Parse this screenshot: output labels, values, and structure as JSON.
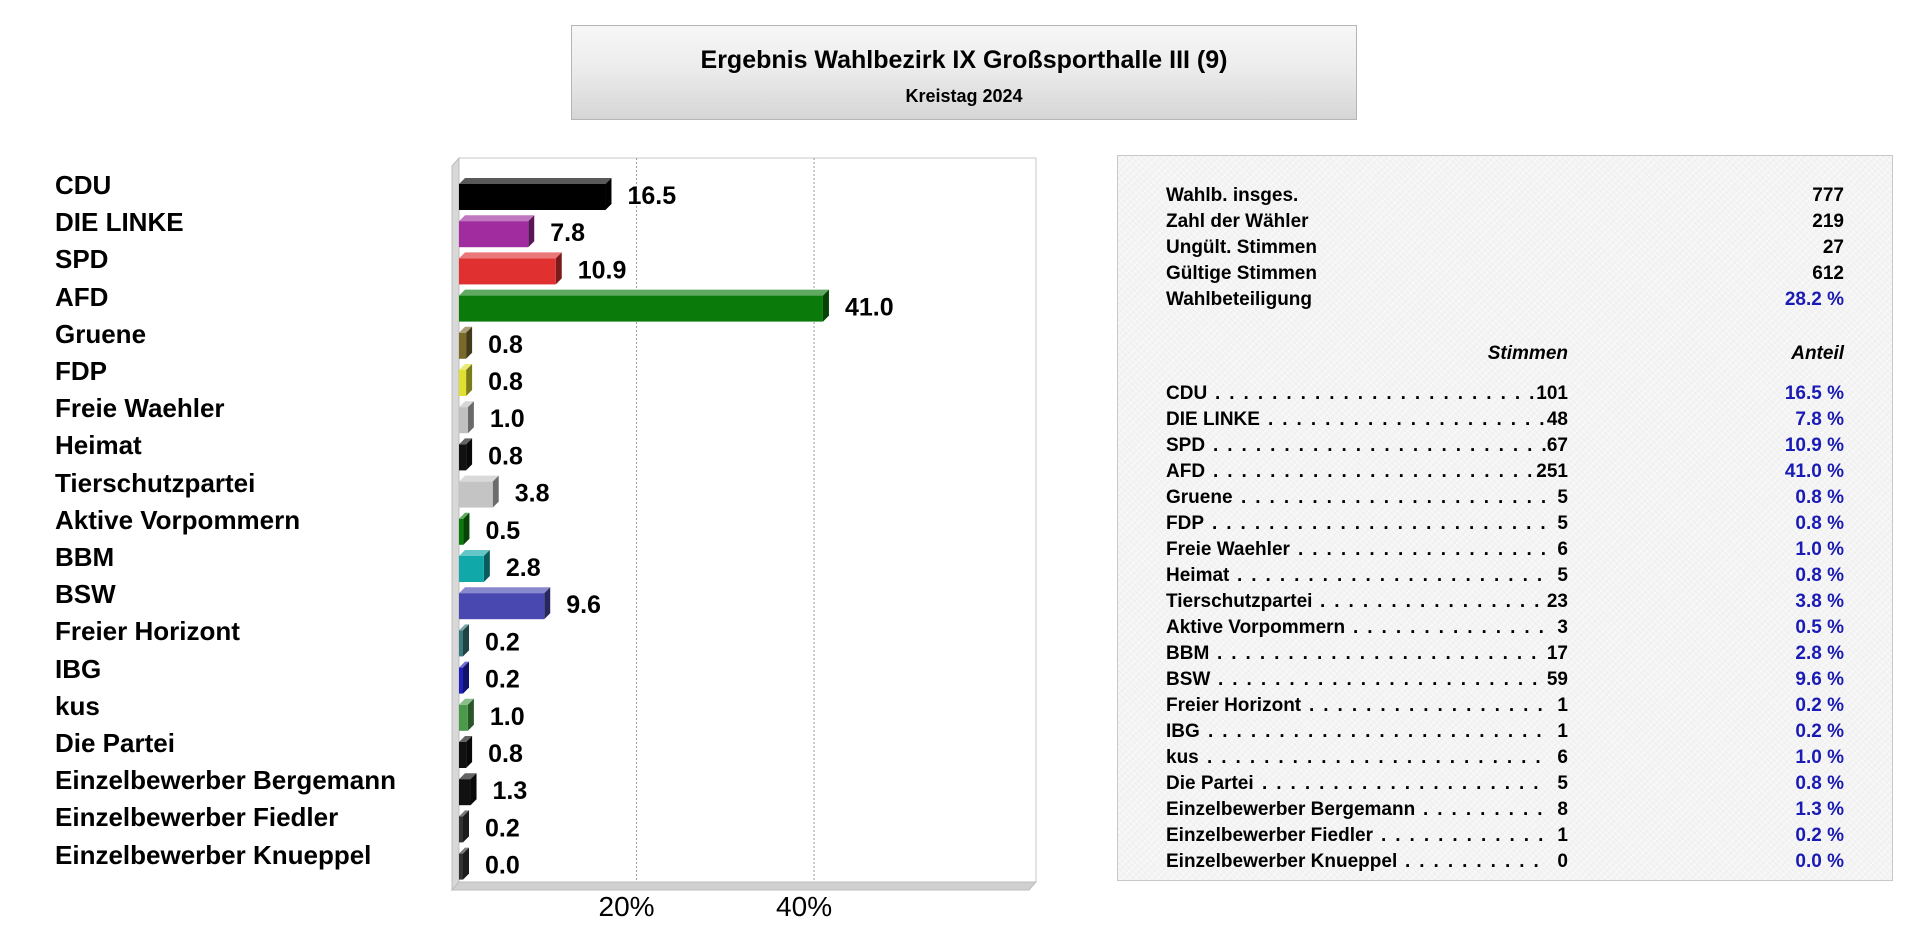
{
  "title": {
    "main": "Ergebnis Wahlbezirk IX Großsporthalle III (9)",
    "sub": "Kreistag 2024"
  },
  "chart_data": {
    "type": "bar",
    "orientation": "horizontal",
    "unit": "%",
    "xlim": [
      0,
      65
    ],
    "xticks": [
      20,
      40
    ],
    "xtick_labels": [
      "20%",
      "40%"
    ],
    "grid": true,
    "categories": [
      "CDU",
      "DIE LINKE",
      "SPD",
      "AFD",
      "Gruene",
      "FDP",
      "Freie Waehler",
      "Heimat",
      "Tierschutzpartei",
      "Aktive Vorpommern",
      "BBM",
      "BSW",
      "Freier Horizont",
      "IBG",
      "kus",
      "Die Partei",
      "Einzelbewerber Bergemann",
      "Einzelbewerber Fiedler",
      "Einzelbewerber Knueppel"
    ],
    "values": [
      16.5,
      7.8,
      10.9,
      41.0,
      0.8,
      0.8,
      1.0,
      0.8,
      3.8,
      0.5,
      2.8,
      9.6,
      0.2,
      0.2,
      1.0,
      0.8,
      1.3,
      0.2,
      0.0
    ],
    "value_labels": [
      "16.5",
      "7.8",
      "10.9",
      "41.0",
      "0.8",
      "0.8",
      "1.0",
      "0.8",
      "3.8",
      "0.5",
      "2.8",
      "9.6",
      "0.2",
      "0.2",
      "1.0",
      "0.8",
      "1.3",
      "0.2",
      "0.0"
    ],
    "colors": [
      "#000000",
      "#a02ca0",
      "#e03030",
      "#0a7a0a",
      "#7a6a2a",
      "#e0e030",
      "#c0c0c0",
      "#111111",
      "#c4c4c4",
      "#0a7a0a",
      "#10a8a8",
      "#4848b0",
      "#3a7a7a",
      "#2020c0",
      "#4a9a4a",
      "#111111",
      "#111111",
      "#333333",
      "#333333"
    ]
  },
  "stats": {
    "rows": [
      {
        "label": "Wahlb. insges.",
        "value": "777",
        "blue": false
      },
      {
        "label": "Zahl der Wähler",
        "value": "219",
        "blue": false
      },
      {
        "label": "Ungült. Stimmen",
        "value": "27",
        "blue": false
      },
      {
        "label": "Gültige Stimmen",
        "value": "612",
        "blue": false
      },
      {
        "label": "Wahlbeteiligung",
        "value": "28.2 %",
        "blue": true
      }
    ],
    "col_votes": "Stimmen",
    "col_share": "Anteil",
    "parties": [
      {
        "name": "CDU",
        "votes": "101",
        "share": "16.5 %"
      },
      {
        "name": "DIE LINKE",
        "votes": "48",
        "share": "7.8 %"
      },
      {
        "name": "SPD",
        "votes": "67",
        "share": "10.9 %"
      },
      {
        "name": "AFD",
        "votes": "251",
        "share": "41.0 %"
      },
      {
        "name": "Gruene",
        "votes": "5",
        "share": "0.8 %"
      },
      {
        "name": "FDP",
        "votes": "5",
        "share": "0.8 %"
      },
      {
        "name": "Freie Waehler",
        "votes": "6",
        "share": "1.0 %"
      },
      {
        "name": "Heimat",
        "votes": "5",
        "share": "0.8 %"
      },
      {
        "name": "Tierschutzpartei",
        "votes": "23",
        "share": "3.8 %"
      },
      {
        "name": "Aktive Vorpommern",
        "votes": "3",
        "share": "0.5 %"
      },
      {
        "name": "BBM",
        "votes": "17",
        "share": "2.8 %"
      },
      {
        "name": "BSW",
        "votes": "59",
        "share": "9.6 %"
      },
      {
        "name": "Freier Horizont",
        "votes": "1",
        "share": "0.2 %"
      },
      {
        "name": "IBG",
        "votes": "1",
        "share": "0.2 %"
      },
      {
        "name": "kus",
        "votes": "6",
        "share": "1.0 %"
      },
      {
        "name": "Die Partei",
        "votes": "5",
        "share": "0.8 %"
      },
      {
        "name": "Einzelbewerber Bergemann",
        "votes": "8",
        "share": "1.3 %"
      },
      {
        "name": "Einzelbewerber Fiedler",
        "votes": "1",
        "share": "0.2 %"
      },
      {
        "name": "Einzelbewerber Knueppel",
        "votes": "0",
        "share": "0.0 %"
      }
    ]
  }
}
